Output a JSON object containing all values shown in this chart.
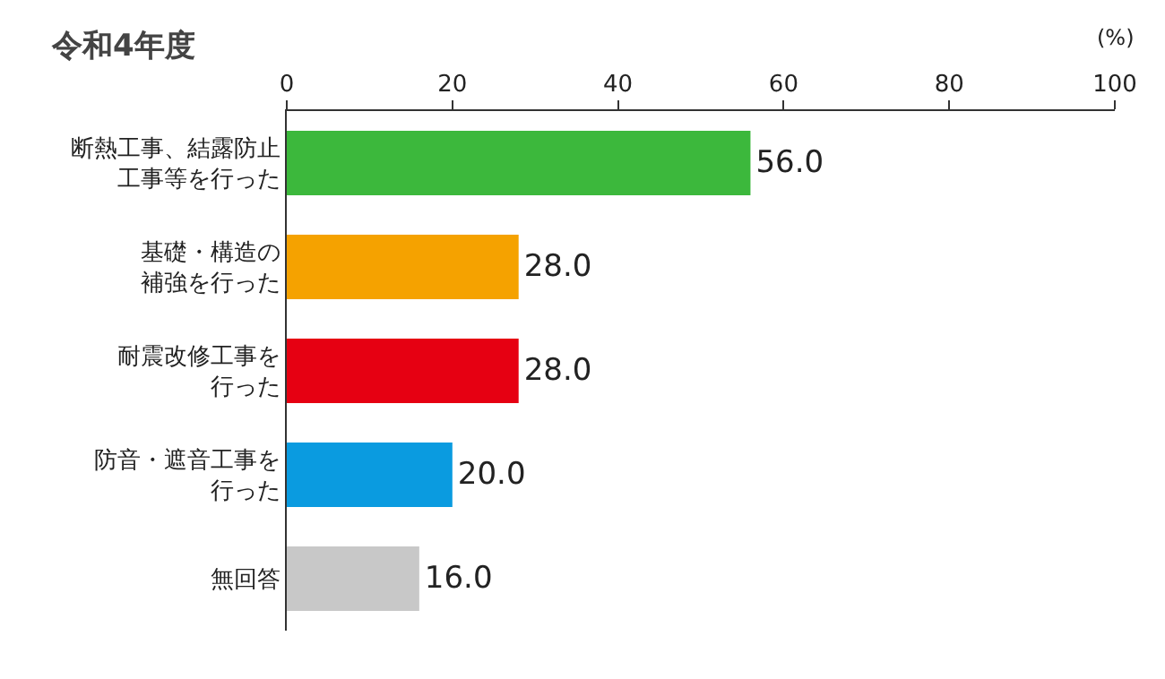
{
  "chart_data": {
    "type": "bar",
    "orientation": "horizontal",
    "title": "令和4年度",
    "xlabel": "(%)",
    "categories": [
      "断熱工事、結露防止工事等を行った",
      "基礎・構造の補強を行った",
      "耐震改修工事を行った",
      "防音・遮音工事を行った",
      "無回答"
    ],
    "values": [
      56.0,
      28.0,
      28.0,
      20.0,
      16.0
    ],
    "value_labels": [
      "56.0",
      "28.0",
      "28.0",
      "20.0",
      "16.0"
    ],
    "colors": [
      "#3cb83c",
      "#f5a200",
      "#e60012",
      "#0a9be0",
      "#c8c8c8"
    ],
    "xlim": [
      0,
      100
    ],
    "xticks": [
      0,
      20,
      40,
      60,
      80,
      100
    ]
  }
}
